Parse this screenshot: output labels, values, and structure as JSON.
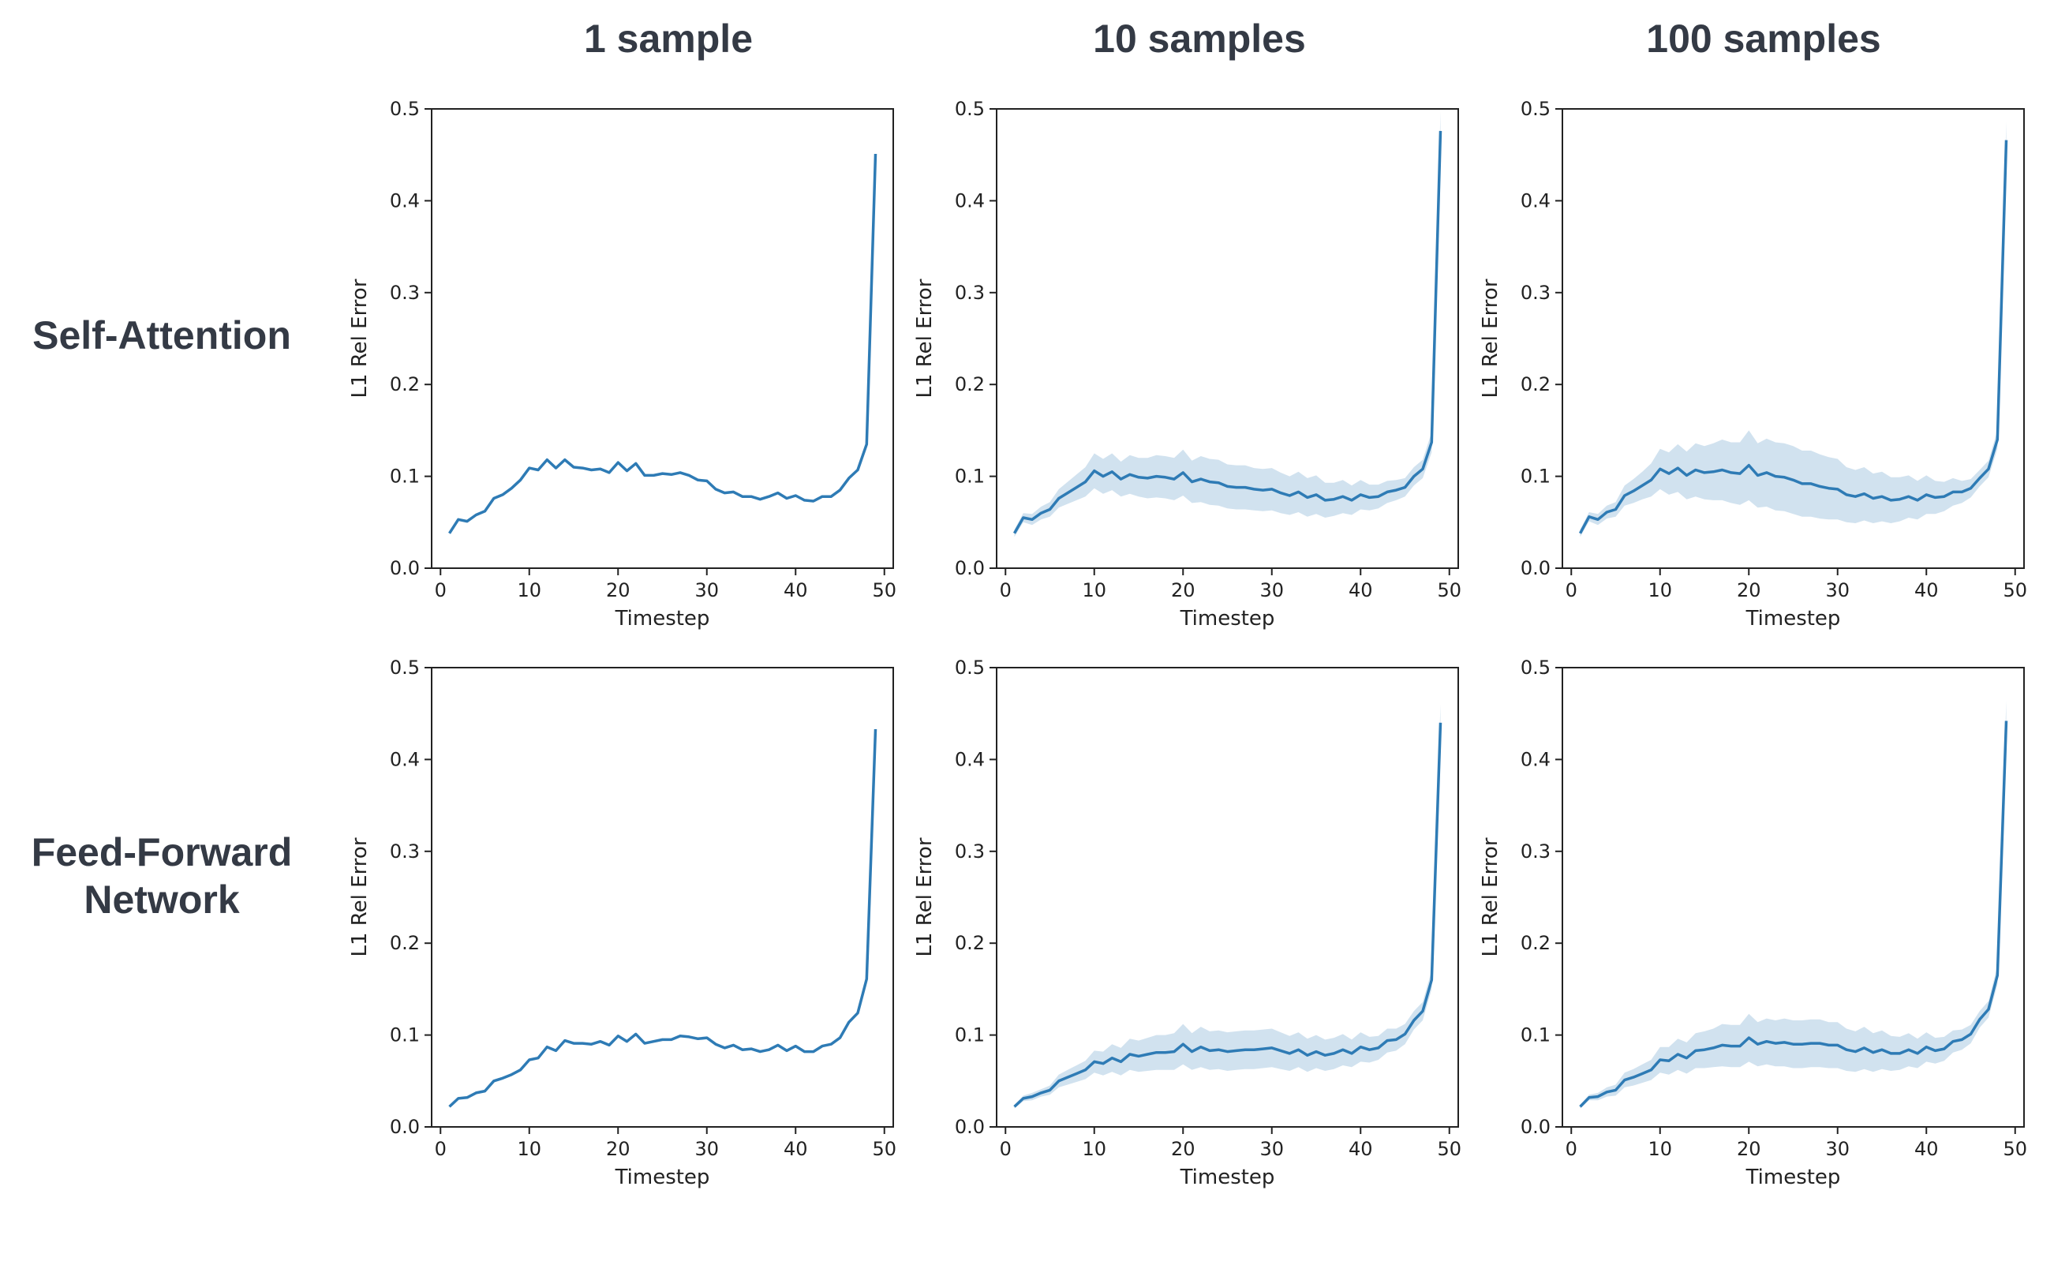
{
  "columns": [
    "1 sample",
    "10 samples",
    "100 samples"
  ],
  "rows": [
    {
      "title_lines": [
        "Self-Attention"
      ]
    },
    {
      "title_lines": [
        "Feed-Forward",
        "Network"
      ]
    }
  ],
  "colors": {
    "line": "#2e7bb5",
    "band": "#2e7bb5",
    "axis": "#222222"
  },
  "chart_data": [
    {
      "type": "line",
      "row": "Self-Attention",
      "column": "1 sample",
      "xlabel": "Timestep",
      "ylabel": "L1 Rel Error",
      "xlim": [
        -1,
        51
      ],
      "ylim": [
        0.0,
        0.5
      ],
      "xticks": [
        0,
        10,
        20,
        30,
        40,
        50
      ],
      "yticks": [
        0.0,
        0.1,
        0.2,
        0.3,
        0.4,
        0.5
      ],
      "x": [
        1,
        2,
        3,
        4,
        5,
        6,
        7,
        8,
        9,
        10,
        11,
        12,
        13,
        14,
        15,
        16,
        17,
        18,
        19,
        20,
        21,
        22,
        23,
        24,
        25,
        26,
        27,
        28,
        29,
        30,
        31,
        32,
        33,
        34,
        35,
        36,
        37,
        38,
        39,
        40,
        41,
        42,
        43,
        44,
        45,
        46,
        47,
        48,
        49
      ],
      "mean": [
        0.038,
        0.053,
        0.051,
        0.058,
        0.062,
        0.076,
        0.08,
        0.087,
        0.096,
        0.109,
        0.107,
        0.118,
        0.109,
        0.118,
        0.11,
        0.109,
        0.107,
        0.108,
        0.104,
        0.115,
        0.106,
        0.114,
        0.101,
        0.101,
        0.103,
        0.102,
        0.104,
        0.101,
        0.096,
        0.095,
        0.086,
        0.082,
        0.083,
        0.078,
        0.078,
        0.075,
        0.078,
        0.082,
        0.076,
        0.079,
        0.074,
        0.073,
        0.078,
        0.078,
        0.085,
        0.098,
        0.107,
        0.135,
        0.451
      ],
      "band": null
    },
    {
      "type": "line",
      "row": "Self-Attention",
      "column": "10 samples",
      "xlabel": "Timestep",
      "ylabel": "L1 Rel Error",
      "xlim": [
        -1,
        51
      ],
      "ylim": [
        0.0,
        0.5
      ],
      "xticks": [
        0,
        10,
        20,
        30,
        40,
        50
      ],
      "yticks": [
        0.0,
        0.1,
        0.2,
        0.3,
        0.4,
        0.5
      ],
      "x": [
        1,
        2,
        3,
        4,
        5,
        6,
        7,
        8,
        9,
        10,
        11,
        12,
        13,
        14,
        15,
        16,
        17,
        18,
        19,
        20,
        21,
        22,
        23,
        24,
        25,
        26,
        27,
        28,
        29,
        30,
        31,
        32,
        33,
        34,
        35,
        36,
        37,
        38,
        39,
        40,
        41,
        42,
        43,
        44,
        45,
        46,
        47,
        48,
        49
      ],
      "mean": [
        0.038,
        0.055,
        0.053,
        0.06,
        0.064,
        0.076,
        0.082,
        0.088,
        0.094,
        0.106,
        0.1,
        0.105,
        0.097,
        0.102,
        0.099,
        0.098,
        0.1,
        0.099,
        0.097,
        0.104,
        0.094,
        0.097,
        0.094,
        0.093,
        0.089,
        0.088,
        0.088,
        0.086,
        0.085,
        0.086,
        0.082,
        0.079,
        0.083,
        0.077,
        0.08,
        0.074,
        0.075,
        0.078,
        0.074,
        0.08,
        0.077,
        0.078,
        0.083,
        0.085,
        0.088,
        0.1,
        0.108,
        0.137,
        0.476
      ],
      "band": {
        "lower": [
          0.034,
          0.05,
          0.047,
          0.053,
          0.056,
          0.066,
          0.07,
          0.074,
          0.078,
          0.087,
          0.081,
          0.085,
          0.078,
          0.081,
          0.078,
          0.076,
          0.077,
          0.076,
          0.074,
          0.079,
          0.071,
          0.072,
          0.069,
          0.068,
          0.065,
          0.064,
          0.064,
          0.063,
          0.062,
          0.063,
          0.06,
          0.058,
          0.061,
          0.056,
          0.059,
          0.055,
          0.057,
          0.06,
          0.058,
          0.064,
          0.063,
          0.065,
          0.071,
          0.074,
          0.078,
          0.09,
          0.098,
          0.126,
          0.455
        ],
        "upper": [
          0.042,
          0.06,
          0.059,
          0.067,
          0.072,
          0.086,
          0.094,
          0.102,
          0.11,
          0.125,
          0.119,
          0.125,
          0.116,
          0.123,
          0.12,
          0.12,
          0.123,
          0.122,
          0.12,
          0.129,
          0.117,
          0.122,
          0.119,
          0.118,
          0.113,
          0.112,
          0.112,
          0.109,
          0.108,
          0.109,
          0.104,
          0.1,
          0.105,
          0.098,
          0.101,
          0.093,
          0.093,
          0.096,
          0.09,
          0.096,
          0.091,
          0.091,
          0.095,
          0.096,
          0.098,
          0.11,
          0.118,
          0.148,
          0.497
        ]
      }
    },
    {
      "type": "line",
      "row": "Self-Attention",
      "column": "100 samples",
      "xlabel": "Timestep",
      "ylabel": "L1 Rel Error",
      "xlim": [
        -1,
        51
      ],
      "ylim": [
        0.0,
        0.5
      ],
      "xticks": [
        0,
        10,
        20,
        30,
        40,
        50
      ],
      "yticks": [
        0.0,
        0.1,
        0.2,
        0.3,
        0.4,
        0.5
      ],
      "x": [
        1,
        2,
        3,
        4,
        5,
        6,
        7,
        8,
        9,
        10,
        11,
        12,
        13,
        14,
        15,
        16,
        17,
        18,
        19,
        20,
        21,
        22,
        23,
        24,
        25,
        26,
        27,
        28,
        29,
        30,
        31,
        32,
        33,
        34,
        35,
        36,
        37,
        38,
        39,
        40,
        41,
        42,
        43,
        44,
        45,
        46,
        47,
        48,
        49
      ],
      "mean": [
        0.038,
        0.056,
        0.053,
        0.061,
        0.064,
        0.079,
        0.084,
        0.09,
        0.096,
        0.108,
        0.103,
        0.109,
        0.101,
        0.107,
        0.104,
        0.105,
        0.107,
        0.104,
        0.103,
        0.112,
        0.101,
        0.104,
        0.1,
        0.099,
        0.096,
        0.092,
        0.092,
        0.089,
        0.087,
        0.086,
        0.08,
        0.078,
        0.081,
        0.076,
        0.078,
        0.074,
        0.075,
        0.078,
        0.074,
        0.08,
        0.077,
        0.078,
        0.083,
        0.083,
        0.087,
        0.098,
        0.108,
        0.14,
        0.466
      ],
      "band": {
        "lower": [
          0.034,
          0.051,
          0.047,
          0.054,
          0.056,
          0.068,
          0.071,
          0.075,
          0.078,
          0.086,
          0.08,
          0.083,
          0.075,
          0.078,
          0.075,
          0.074,
          0.074,
          0.071,
          0.069,
          0.074,
          0.066,
          0.067,
          0.063,
          0.062,
          0.059,
          0.056,
          0.056,
          0.054,
          0.053,
          0.053,
          0.05,
          0.049,
          0.052,
          0.049,
          0.051,
          0.049,
          0.051,
          0.055,
          0.053,
          0.059,
          0.059,
          0.062,
          0.068,
          0.071,
          0.077,
          0.089,
          0.099,
          0.13,
          0.446
        ],
        "upper": [
          0.042,
          0.061,
          0.059,
          0.068,
          0.072,
          0.09,
          0.097,
          0.105,
          0.114,
          0.13,
          0.126,
          0.135,
          0.127,
          0.136,
          0.133,
          0.136,
          0.14,
          0.137,
          0.137,
          0.15,
          0.136,
          0.141,
          0.137,
          0.136,
          0.133,
          0.128,
          0.128,
          0.124,
          0.121,
          0.119,
          0.11,
          0.107,
          0.11,
          0.103,
          0.105,
          0.099,
          0.099,
          0.101,
          0.095,
          0.101,
          0.095,
          0.094,
          0.098,
          0.095,
          0.097,
          0.107,
          0.117,
          0.15,
          0.486
        ]
      }
    },
    {
      "type": "line",
      "row": "Feed-Forward Network",
      "column": "1 sample",
      "xlabel": "Timestep",
      "ylabel": "L1 Rel Error",
      "xlim": [
        -1,
        51
      ],
      "ylim": [
        0.0,
        0.5
      ],
      "xticks": [
        0,
        10,
        20,
        30,
        40,
        50
      ],
      "yticks": [
        0.0,
        0.1,
        0.2,
        0.3,
        0.4,
        0.5
      ],
      "x": [
        1,
        2,
        3,
        4,
        5,
        6,
        7,
        8,
        9,
        10,
        11,
        12,
        13,
        14,
        15,
        16,
        17,
        18,
        19,
        20,
        21,
        22,
        23,
        24,
        25,
        26,
        27,
        28,
        29,
        30,
        31,
        32,
        33,
        34,
        35,
        36,
        37,
        38,
        39,
        40,
        41,
        42,
        43,
        44,
        45,
        46,
        47,
        48,
        49
      ],
      "mean": [
        0.022,
        0.031,
        0.032,
        0.037,
        0.039,
        0.05,
        0.053,
        0.057,
        0.062,
        0.073,
        0.075,
        0.087,
        0.083,
        0.094,
        0.091,
        0.091,
        0.09,
        0.093,
        0.089,
        0.099,
        0.093,
        0.101,
        0.091,
        0.093,
        0.095,
        0.095,
        0.099,
        0.098,
        0.096,
        0.097,
        0.09,
        0.086,
        0.089,
        0.084,
        0.085,
        0.082,
        0.084,
        0.089,
        0.083,
        0.088,
        0.082,
        0.082,
        0.088,
        0.09,
        0.097,
        0.114,
        0.124,
        0.161,
        0.433
      ],
      "band": null
    },
    {
      "type": "line",
      "row": "Feed-Forward Network",
      "column": "10 samples",
      "xlabel": "Timestep",
      "ylabel": "L1 Rel Error",
      "xlim": [
        -1,
        51
      ],
      "ylim": [
        0.0,
        0.5
      ],
      "xticks": [
        0,
        10,
        20,
        30,
        40,
        50
      ],
      "yticks": [
        0.0,
        0.1,
        0.2,
        0.3,
        0.4,
        0.5
      ],
      "x": [
        1,
        2,
        3,
        4,
        5,
        6,
        7,
        8,
        9,
        10,
        11,
        12,
        13,
        14,
        15,
        16,
        17,
        18,
        19,
        20,
        21,
        22,
        23,
        24,
        25,
        26,
        27,
        28,
        29,
        30,
        31,
        32,
        33,
        34,
        35,
        36,
        37,
        38,
        39,
        40,
        41,
        42,
        43,
        44,
        45,
        46,
        47,
        48,
        49
      ],
      "mean": [
        0.022,
        0.031,
        0.033,
        0.037,
        0.04,
        0.05,
        0.054,
        0.058,
        0.062,
        0.071,
        0.069,
        0.075,
        0.071,
        0.079,
        0.077,
        0.079,
        0.081,
        0.081,
        0.082,
        0.09,
        0.082,
        0.087,
        0.083,
        0.084,
        0.082,
        0.083,
        0.084,
        0.084,
        0.085,
        0.086,
        0.083,
        0.08,
        0.084,
        0.078,
        0.082,
        0.078,
        0.08,
        0.084,
        0.08,
        0.087,
        0.084,
        0.086,
        0.094,
        0.095,
        0.101,
        0.116,
        0.126,
        0.16,
        0.44
      ],
      "band": {
        "lower": [
          0.02,
          0.028,
          0.029,
          0.033,
          0.035,
          0.043,
          0.046,
          0.049,
          0.052,
          0.059,
          0.056,
          0.06,
          0.056,
          0.062,
          0.06,
          0.061,
          0.062,
          0.062,
          0.062,
          0.068,
          0.062,
          0.065,
          0.062,
          0.063,
          0.061,
          0.062,
          0.063,
          0.063,
          0.064,
          0.065,
          0.063,
          0.061,
          0.065,
          0.06,
          0.064,
          0.061,
          0.063,
          0.067,
          0.065,
          0.071,
          0.07,
          0.073,
          0.081,
          0.083,
          0.09,
          0.106,
          0.116,
          0.15,
          0.42
        ],
        "upper": [
          0.024,
          0.034,
          0.037,
          0.041,
          0.045,
          0.057,
          0.062,
          0.067,
          0.072,
          0.083,
          0.082,
          0.09,
          0.086,
          0.096,
          0.094,
          0.097,
          0.1,
          0.1,
          0.102,
          0.112,
          0.102,
          0.109,
          0.104,
          0.105,
          0.103,
          0.104,
          0.105,
          0.105,
          0.106,
          0.107,
          0.103,
          0.099,
          0.103,
          0.096,
          0.1,
          0.095,
          0.097,
          0.101,
          0.095,
          0.103,
          0.098,
          0.099,
          0.107,
          0.107,
          0.112,
          0.126,
          0.136,
          0.17,
          0.46
        ]
      }
    },
    {
      "type": "line",
      "row": "Feed-Forward Network",
      "column": "100 samples",
      "xlabel": "Timestep",
      "ylabel": "L1 Rel Error",
      "xlim": [
        -1,
        51
      ],
      "ylim": [
        0.0,
        0.5
      ],
      "xticks": [
        0,
        10,
        20,
        30,
        40,
        50
      ],
      "yticks": [
        0.0,
        0.1,
        0.2,
        0.3,
        0.4,
        0.5
      ],
      "x": [
        1,
        2,
        3,
        4,
        5,
        6,
        7,
        8,
        9,
        10,
        11,
        12,
        13,
        14,
        15,
        16,
        17,
        18,
        19,
        20,
        21,
        22,
        23,
        24,
        25,
        26,
        27,
        28,
        29,
        30,
        31,
        32,
        33,
        34,
        35,
        36,
        37,
        38,
        39,
        40,
        41,
        42,
        43,
        44,
        45,
        46,
        47,
        48,
        49
      ],
      "mean": [
        0.022,
        0.032,
        0.033,
        0.038,
        0.04,
        0.051,
        0.054,
        0.058,
        0.062,
        0.073,
        0.072,
        0.079,
        0.075,
        0.083,
        0.084,
        0.086,
        0.089,
        0.088,
        0.088,
        0.097,
        0.09,
        0.093,
        0.091,
        0.092,
        0.09,
        0.09,
        0.091,
        0.091,
        0.089,
        0.089,
        0.084,
        0.082,
        0.086,
        0.081,
        0.084,
        0.08,
        0.08,
        0.084,
        0.08,
        0.087,
        0.083,
        0.085,
        0.093,
        0.095,
        0.101,
        0.117,
        0.128,
        0.165,
        0.442
      ],
      "band": {
        "lower": [
          0.02,
          0.029,
          0.029,
          0.033,
          0.034,
          0.043,
          0.045,
          0.048,
          0.051,
          0.059,
          0.057,
          0.062,
          0.058,
          0.064,
          0.064,
          0.065,
          0.066,
          0.065,
          0.065,
          0.071,
          0.066,
          0.068,
          0.066,
          0.066,
          0.064,
          0.064,
          0.065,
          0.065,
          0.064,
          0.064,
          0.061,
          0.06,
          0.063,
          0.06,
          0.063,
          0.061,
          0.062,
          0.066,
          0.064,
          0.071,
          0.069,
          0.072,
          0.081,
          0.084,
          0.091,
          0.108,
          0.119,
          0.155,
          0.42
        ],
        "upper": [
          0.024,
          0.035,
          0.037,
          0.043,
          0.046,
          0.059,
          0.063,
          0.068,
          0.073,
          0.087,
          0.087,
          0.096,
          0.092,
          0.102,
          0.104,
          0.107,
          0.112,
          0.111,
          0.111,
          0.123,
          0.114,
          0.118,
          0.116,
          0.118,
          0.116,
          0.116,
          0.117,
          0.117,
          0.114,
          0.114,
          0.107,
          0.104,
          0.109,
          0.102,
          0.105,
          0.099,
          0.098,
          0.102,
          0.096,
          0.103,
          0.097,
          0.098,
          0.105,
          0.106,
          0.111,
          0.126,
          0.137,
          0.175,
          0.464
        ]
      }
    }
  ]
}
